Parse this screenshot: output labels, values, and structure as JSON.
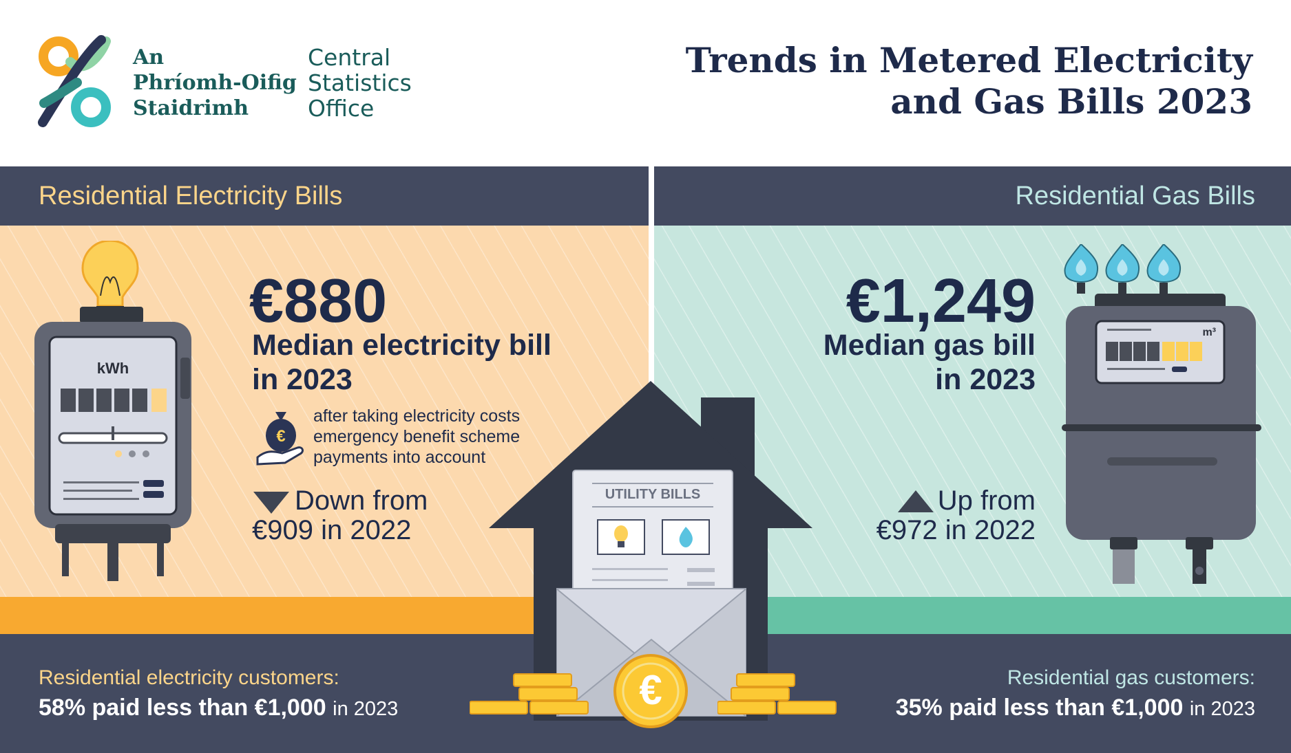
{
  "header": {
    "logo_irish": [
      "An",
      "Phríomh-Oifig",
      "Staidrimh"
    ],
    "logo_english": [
      "Central",
      "Statistics",
      "Office"
    ],
    "title_lines": [
      "Trends in Metered Electricity",
      "and Gas Bills 2023"
    ]
  },
  "electricity": {
    "heading": "Residential Electricity Bills",
    "median_value": "€880",
    "median_label_lines": [
      "Median electricity bill",
      "in 2023"
    ],
    "note_lines": [
      "after taking electricity costs",
      "emergency benefit scheme",
      "payments into account"
    ],
    "change_lines": [
      "Down from",
      "€909 in 2022"
    ],
    "change_direction": "down",
    "meter_unit": "kWh",
    "customers_label": "Residential electricity customers:",
    "customers_stat": "58% paid less than €1,000",
    "customers_year": "in 2023"
  },
  "gas": {
    "heading": "Residential Gas Bills",
    "median_value": "€1,249",
    "median_label_lines": [
      "Median gas bill",
      "in 2023"
    ],
    "change_lines": [
      "Up from",
      "€972 in 2022"
    ],
    "change_direction": "up",
    "meter_unit": "m³",
    "customers_label": "Residential gas customers:",
    "customers_stat": "35% paid less than €1,000",
    "customers_year": "in 2023"
  },
  "envelope": {
    "label": "UTILITY BILLS",
    "coin_symbol": "€"
  },
  "icons": [
    "csi-logo-icon",
    "light-bulb-icon",
    "electricity-meter-icon",
    "money-bag-hand-icon",
    "down-triangle-icon",
    "gas-flame-icon",
    "gas-meter-icon",
    "up-triangle-icon",
    "house-icon",
    "envelope-icon",
    "euro-coin-icon",
    "coin-stack-icon"
  ],
  "colors": {
    "navy": "#1e2a4a",
    "bar": "#434a60",
    "electricity_accent": "#fcd58a",
    "electricity_bg": "#fcd9ae",
    "electricity_ground": "#f8a930",
    "gas_accent": "#bfe6e4",
    "gas_bg": "#c7e6de",
    "gas_ground": "#66c2a5",
    "logo_teal": "#1a5c5a"
  }
}
